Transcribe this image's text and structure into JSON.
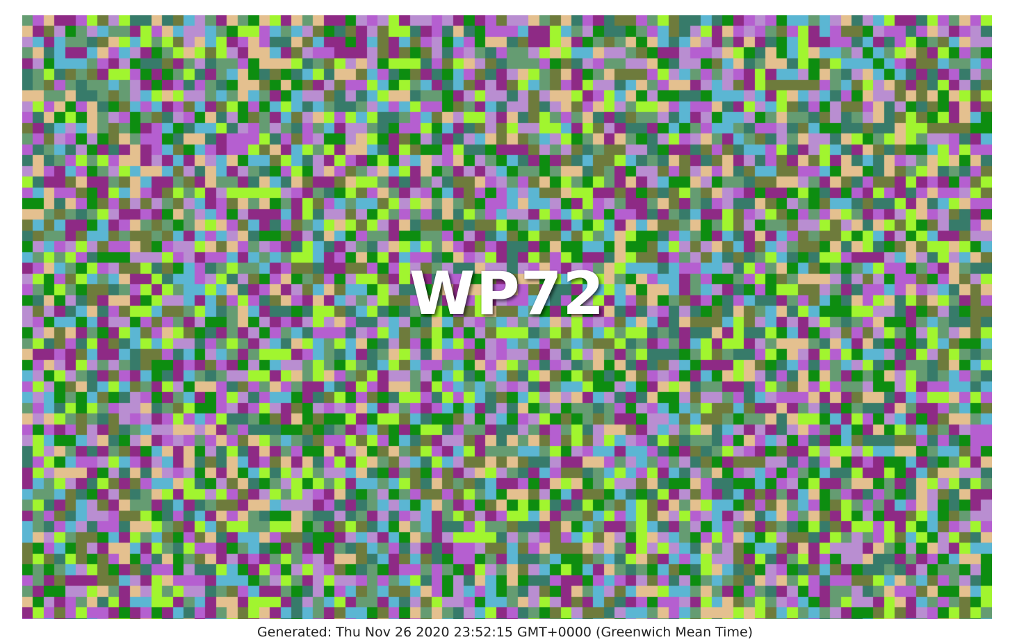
{
  "image": {
    "label": "WP72",
    "generated": "Generated: Thu Nov 26 2020 23:52:15 GMT+0000 (Greenwich Mean Time)",
    "palette": [
      "#8e2a85",
      "#b55fd0",
      "#b98ed1",
      "#5bb6d3",
      "#e4c08f",
      "#a1f52f",
      "#0d8d10",
      "#6e7b3c",
      "#377b6a",
      "#659c72"
    ]
  }
}
